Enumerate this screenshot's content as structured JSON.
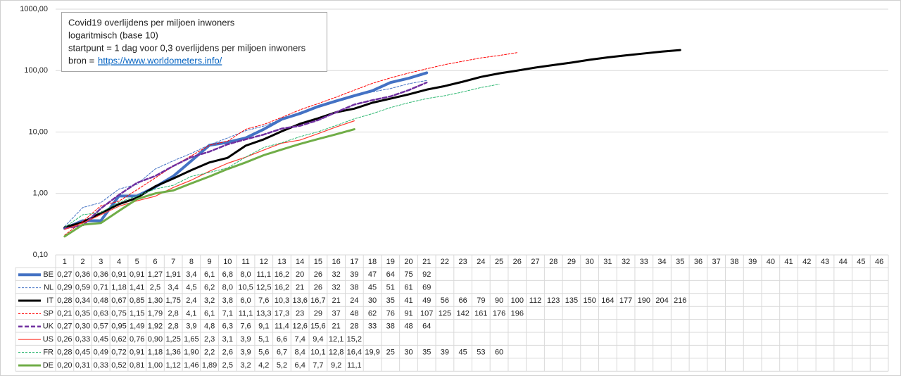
{
  "chart_data": {
    "type": "line",
    "title": "Covid19 overlijdens per miljoen inwoners",
    "annotations": [
      "logaritmisch (base 10)",
      "startpunt = 1 dag voor 0,3 overlijdens  per miljoen inwoners"
    ],
    "source_label": "bron =",
    "source_link": "https://www.worldometers.info/",
    "log_scale": true,
    "grid": true,
    "ylim": [
      0.1,
      1000
    ],
    "yticks": [
      {
        "value": 0.1,
        "label": "0,10"
      },
      {
        "value": 1,
        "label": "1,00"
      },
      {
        "value": 10,
        "label": "10,00"
      },
      {
        "value": 100,
        "label": "100,00"
      },
      {
        "value": 1000,
        "label": "1000,00"
      }
    ],
    "categories": [
      "1",
      "2",
      "3",
      "4",
      "5",
      "6",
      "7",
      "8",
      "9",
      "10",
      "11",
      "12",
      "13",
      "14",
      "15",
      "16",
      "17",
      "18",
      "19",
      "20",
      "21",
      "22",
      "23",
      "24",
      "25",
      "26",
      "27",
      "28",
      "29",
      "30",
      "31",
      "32",
      "33",
      "34",
      "35",
      "36",
      "37",
      "38",
      "39",
      "40",
      "41",
      "42",
      "43",
      "44",
      "45",
      "46"
    ],
    "series": [
      {
        "name": "BE",
        "color": "#4472c4",
        "width": 4,
        "dash": "none",
        "values": [
          0.27,
          0.36,
          0.36,
          0.91,
          0.91,
          1.27,
          1.91,
          3.4,
          6.1,
          6.8,
          8.0,
          11.1,
          16.2,
          20,
          26,
          32,
          39,
          47,
          64,
          75,
          92,
          null,
          null,
          null,
          null,
          null,
          null,
          null,
          null,
          null,
          null,
          null,
          null,
          null,
          null,
          null,
          null,
          null,
          null,
          null,
          null,
          null,
          null,
          null,
          null,
          null
        ],
        "value_labels": [
          "0,27",
          "0,36",
          "0,36",
          "0,91",
          "0,91",
          "1,27",
          "1,91",
          "3,4",
          "6,1",
          "6,8",
          "8,0",
          "11,1",
          "16,2",
          "20",
          "26",
          "32",
          "39",
          "47",
          "64",
          "75",
          "92",
          null,
          null,
          null,
          null,
          null,
          null,
          null,
          null,
          null,
          null,
          null,
          null,
          null,
          null,
          null,
          null,
          null,
          null,
          null,
          null,
          null,
          null,
          null,
          null,
          null
        ]
      },
      {
        "name": "NL",
        "color": "#4472c4",
        "width": 1,
        "dash": "3,2",
        "values": [
          0.29,
          0.59,
          0.71,
          1.18,
          1.41,
          2.5,
          3.4,
          4.5,
          6.2,
          8.0,
          10.5,
          12.5,
          16.2,
          21,
          26,
          32,
          38,
          45,
          51,
          61,
          69,
          null,
          null,
          null,
          null,
          null,
          null,
          null,
          null,
          null,
          null,
          null,
          null,
          null,
          null,
          null,
          null,
          null,
          null,
          null,
          null,
          null,
          null,
          null,
          null,
          null
        ],
        "value_labels": [
          "0,29",
          "0,59",
          "0,71",
          "1,18",
          "1,41",
          "2,5",
          "3,4",
          "4,5",
          "6,2",
          "8,0",
          "10,5",
          "12,5",
          "16,2",
          "21",
          "26",
          "32",
          "38",
          "45",
          "51",
          "61",
          "69",
          null,
          null,
          null,
          null,
          null,
          null,
          null,
          null,
          null,
          null,
          null,
          null,
          null,
          null,
          null,
          null,
          null,
          null,
          null,
          null,
          null,
          null,
          null,
          null,
          null
        ]
      },
      {
        "name": "IT",
        "color": "#000000",
        "width": 3,
        "dash": "none",
        "values": [
          0.28,
          0.34,
          0.48,
          0.67,
          0.85,
          1.3,
          1.75,
          2.4,
          3.2,
          3.8,
          6.0,
          7.6,
          10.3,
          13.6,
          16.7,
          21,
          24,
          30,
          35,
          41,
          49,
          56,
          66,
          79,
          90,
          100,
          112,
          123,
          135,
          150,
          164,
          177,
          190,
          204,
          216,
          null,
          null,
          null,
          null,
          null,
          null,
          null,
          null,
          null,
          null,
          null
        ],
        "value_labels": [
          "0,28",
          "0,34",
          "0,48",
          "0,67",
          "0,85",
          "1,30",
          "1,75",
          "2,4",
          "3,2",
          "3,8",
          "6,0",
          "7,6",
          "10,3",
          "13,6",
          "16,7",
          "21",
          "24",
          "30",
          "35",
          "41",
          "49",
          "56",
          "66",
          "79",
          "90",
          "100",
          "112",
          "123",
          "135",
          "150",
          "164",
          "177",
          "190",
          "204",
          "216",
          null,
          null,
          null,
          null,
          null,
          null,
          null,
          null,
          null,
          null,
          null
        ]
      },
      {
        "name": "SP",
        "color": "#ff0000",
        "width": 1,
        "dash": "3,2",
        "values": [
          0.21,
          0.35,
          0.63,
          0.75,
          1.15,
          1.79,
          2.8,
          4.1,
          6.1,
          7.1,
          11.1,
          13.3,
          17.3,
          23,
          29,
          37,
          48,
          62,
          76,
          91,
          107,
          125,
          142,
          161,
          176,
          196,
          null,
          null,
          null,
          null,
          null,
          null,
          null,
          null,
          null,
          null,
          null,
          null,
          null,
          null,
          null,
          null,
          null,
          null,
          null,
          null
        ],
        "value_labels": [
          "0,21",
          "0,35",
          "0,63",
          "0,75",
          "1,15",
          "1,79",
          "2,8",
          "4,1",
          "6,1",
          "7,1",
          "11,1",
          "13,3",
          "17,3",
          "23",
          "29",
          "37",
          "48",
          "62",
          "76",
          "91",
          "107",
          "125",
          "142",
          "161",
          "176",
          "196",
          null,
          null,
          null,
          null,
          null,
          null,
          null,
          null,
          null,
          null,
          null,
          null,
          null,
          null,
          null,
          null,
          null,
          null,
          null,
          null
        ]
      },
      {
        "name": "UK",
        "color": "#7030a0",
        "width": 2.5,
        "dash": "6,3",
        "values": [
          0.27,
          0.3,
          0.57,
          0.95,
          1.49,
          1.92,
          2.8,
          3.9,
          4.8,
          6.3,
          7.6,
          9.1,
          11.4,
          12.6,
          15.6,
          21,
          28,
          33,
          38,
          48,
          64,
          null,
          null,
          null,
          null,
          null,
          null,
          null,
          null,
          null,
          null,
          null,
          null,
          null,
          null,
          null,
          null,
          null,
          null,
          null,
          null,
          null,
          null,
          null,
          null,
          null
        ],
        "value_labels": [
          "0,27",
          "0,30",
          "0,57",
          "0,95",
          "1,49",
          "1,92",
          "2,8",
          "3,9",
          "4,8",
          "6,3",
          "7,6",
          "9,1",
          "11,4",
          "12,6",
          "15,6",
          "21",
          "28",
          "33",
          "38",
          "48",
          "64",
          null,
          null,
          null,
          null,
          null,
          null,
          null,
          null,
          null,
          null,
          null,
          null,
          null,
          null,
          null,
          null,
          null,
          null,
          null,
          null,
          null,
          null,
          null,
          null,
          null
        ]
      },
      {
        "name": "US",
        "color": "#ff3b30",
        "width": 1.2,
        "dash": "none",
        "values": [
          0.26,
          0.33,
          0.45,
          0.62,
          0.76,
          0.9,
          1.25,
          1.65,
          2.3,
          3.1,
          3.9,
          5.1,
          6.6,
          7.4,
          9.4,
          12.1,
          15.2,
          null,
          null,
          null,
          null,
          null,
          null,
          null,
          null,
          null,
          null,
          null,
          null,
          null,
          null,
          null,
          null,
          null,
          null,
          null,
          null,
          null,
          null,
          null,
          null,
          null,
          null,
          null,
          null,
          null
        ],
        "value_labels": [
          "0,26",
          "0,33",
          "0,45",
          "0,62",
          "0,76",
          "0,90",
          "1,25",
          "1,65",
          "2,3",
          "3,1",
          "3,9",
          "5,1",
          "6,6",
          "7,4",
          "9,4",
          "12,1",
          "15,2",
          null,
          null,
          null,
          null,
          null,
          null,
          null,
          null,
          null,
          null,
          null,
          null,
          null,
          null,
          null,
          null,
          null,
          null,
          null,
          null,
          null,
          null,
          null,
          null,
          null,
          null,
          null,
          null,
          null
        ]
      },
      {
        "name": "FR",
        "color": "#2eb872",
        "width": 1,
        "dash": "3,2",
        "values": [
          0.28,
          0.45,
          0.49,
          0.72,
          0.91,
          1.18,
          1.36,
          1.9,
          2.2,
          2.6,
          3.9,
          5.6,
          6.7,
          8.4,
          10.1,
          12.8,
          16.4,
          19.9,
          25,
          30,
          35,
          39,
          45,
          53,
          60,
          null,
          null,
          null,
          null,
          null,
          null,
          null,
          null,
          null,
          null,
          null,
          null,
          null,
          null,
          null,
          null,
          null,
          null,
          null,
          null,
          null
        ],
        "value_labels": [
          "0,28",
          "0,45",
          "0,49",
          "0,72",
          "0,91",
          "1,18",
          "1,36",
          "1,90",
          "2,2",
          "2,6",
          "3,9",
          "5,6",
          "6,7",
          "8,4",
          "10,1",
          "12,8",
          "16,4",
          "19,9",
          "25",
          "30",
          "35",
          "39",
          "45",
          "53",
          "60",
          null,
          null,
          null,
          null,
          null,
          null,
          null,
          null,
          null,
          null,
          null,
          null,
          null,
          null,
          null,
          null,
          null,
          null,
          null,
          null,
          null
        ]
      },
      {
        "name": "DE",
        "color": "#70ad47",
        "width": 3,
        "dash": "none",
        "values": [
          0.2,
          0.31,
          0.33,
          0.52,
          0.81,
          1.0,
          1.12,
          1.46,
          1.89,
          2.5,
          3.2,
          4.2,
          5.2,
          6.4,
          7.7,
          9.2,
          11.1,
          null,
          null,
          null,
          null,
          null,
          null,
          null,
          null,
          null,
          null,
          null,
          null,
          null,
          null,
          null,
          null,
          null,
          null,
          null,
          null,
          null,
          null,
          null,
          null,
          null,
          null,
          null,
          null,
          null
        ],
        "value_labels": [
          "0,20",
          "0,31",
          "0,33",
          "0,52",
          "0,81",
          "1,00",
          "1,12",
          "1,46",
          "1,89",
          "2,5",
          "3,2",
          "4,2",
          "5,2",
          "6,4",
          "7,7",
          "9,2",
          "11,1",
          null,
          null,
          null,
          null,
          null,
          null,
          null,
          null,
          null,
          null,
          null,
          null,
          null,
          null,
          null,
          null,
          null,
          null,
          null,
          null,
          null,
          null,
          null,
          null,
          null,
          null,
          null,
          null,
          null
        ]
      }
    ]
  }
}
